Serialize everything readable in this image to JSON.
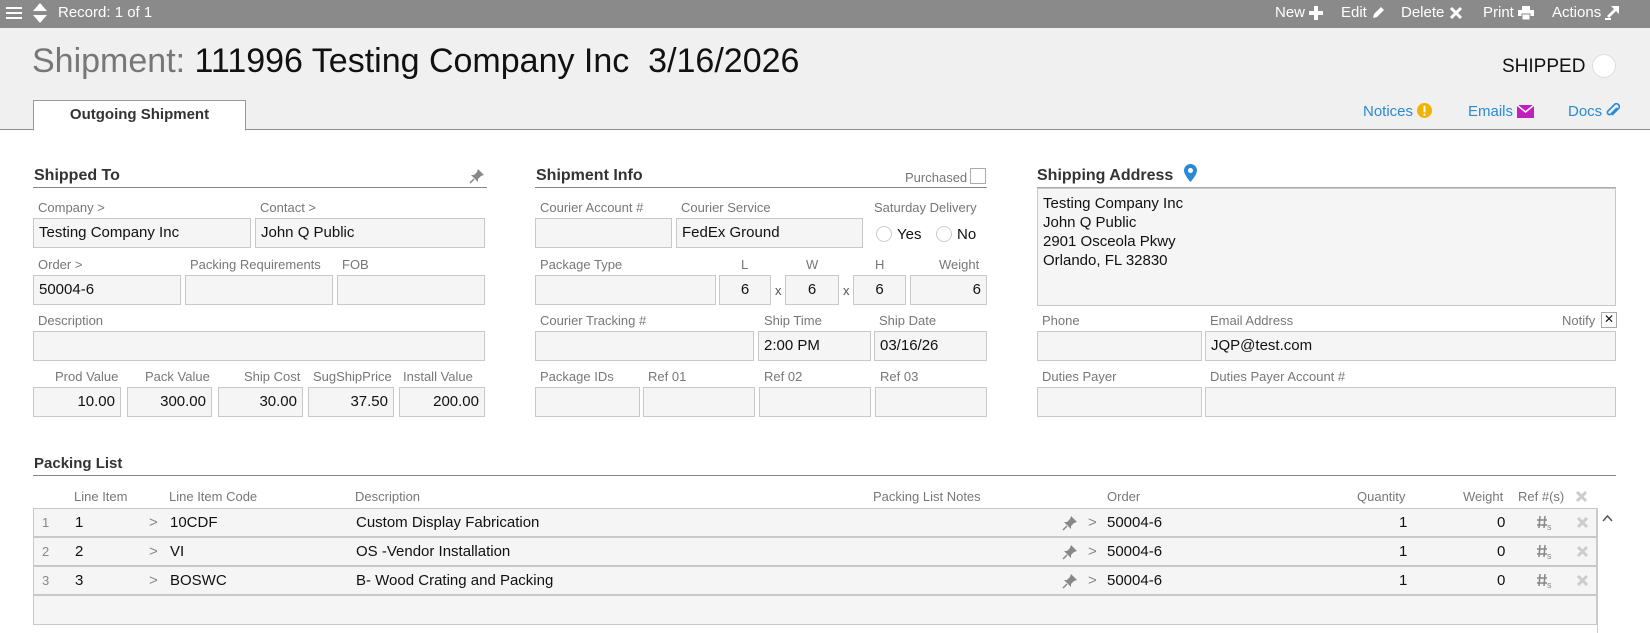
{
  "toolbar": {
    "record": "Record: 1 of 1",
    "new": "New",
    "edit": "Edit",
    "delete": "Delete",
    "print": "Print",
    "actions": "Actions"
  },
  "header": {
    "title_label": "Shipment:",
    "title_value": "111996 Testing Company Inc  3/16/2026",
    "status": "SHIPPED",
    "tab": "Outgoing Shipment",
    "links": {
      "notices": "Notices",
      "emails": "Emails",
      "docs": "Docs"
    }
  },
  "shipped_to": {
    "title": "Shipped To",
    "company_label": "Company >",
    "company": "Testing Company Inc",
    "contact_label": "Contact >",
    "contact": "John Q Public",
    "order_label": "Order >",
    "order": "50004-6",
    "packing_req_label": "Packing Requirements",
    "packing_req": "",
    "fob_label": "FOB",
    "fob": "",
    "description_label": "Description",
    "description": "",
    "prod_value_label": "Prod Value",
    "prod_value": "10.00",
    "pack_value_label": "Pack Value",
    "pack_value": "300.00",
    "ship_cost_label": "Ship Cost",
    "ship_cost": "30.00",
    "sug_ship_price_label": "SugShipPrice",
    "sug_ship_price": "37.50",
    "install_value_label": "Install Value",
    "install_value": "200.00"
  },
  "shipment_info": {
    "title": "Shipment Info",
    "purchased_label": "Purchased",
    "courier_account_label": "Courier Account #",
    "courier_account": "",
    "courier_service_label": "Courier Service",
    "courier_service": "FedEx Ground",
    "saturday_label": "Saturday Delivery",
    "yes": "Yes",
    "no": "No",
    "package_type_label": "Package Type",
    "package_type": "",
    "l_label": "L",
    "l": "6",
    "w_label": "W",
    "w": "6",
    "h_label": "H",
    "h": "6",
    "x": "x",
    "weight_label": "Weight",
    "weight": "6",
    "tracking_label": "Courier Tracking #",
    "tracking": "",
    "ship_time_label": "Ship Time",
    "ship_time": "2:00 PM",
    "ship_date_label": "Ship Date",
    "ship_date": "03/16/26",
    "package_ids_label": "Package IDs",
    "package_ids": "",
    "ref01_label": "Ref 01",
    "ref01": "",
    "ref02_label": "Ref 02",
    "ref02": "",
    "ref03_label": "Ref 03",
    "ref03": ""
  },
  "shipping_address": {
    "title": "Shipping Address",
    "lines": [
      "Testing Company Inc",
      "John Q Public",
      "2901 Osceola Pkwy",
      "Orlando, FL 32830"
    ],
    "phone_label": "Phone",
    "phone": "",
    "email_label": "Email Address",
    "email": "JQP@test.com",
    "notify_label": "Notify",
    "duties_payer_label": "Duties Payer",
    "duties_payer": "",
    "duties_account_label": "Duties Payer Account #",
    "duties_account": ""
  },
  "packing_list": {
    "title": "Packing List",
    "headers": {
      "line_item": "Line Item",
      "code": "Line Item Code",
      "description": "Description",
      "notes": "Packing List Notes",
      "order": "Order",
      "quantity": "Quantity",
      "weight": "Weight",
      "ref": "Ref #(s)"
    },
    "rows": [
      {
        "n": "1",
        "line": "1",
        "code": "10CDF",
        "description": "Custom Display Fabrication",
        "order": "50004-6",
        "qty": "1",
        "weight": "0"
      },
      {
        "n": "2",
        "line": "2",
        "code": "VI",
        "description": "OS -Vendor Installation",
        "order": "50004-6",
        "qty": "1",
        "weight": "0"
      },
      {
        "n": "3",
        "line": "3",
        "code": "BOSWC",
        "description": "B- Wood Crating and Packing",
        "order": "50004-6",
        "qty": "1",
        "weight": "0"
      }
    ],
    "gt": ">"
  },
  "colors": {
    "toolbar": "#8a8a8a",
    "link": "#2a8ad6",
    "notices": "#f0b400",
    "emails": "#c020c0"
  }
}
